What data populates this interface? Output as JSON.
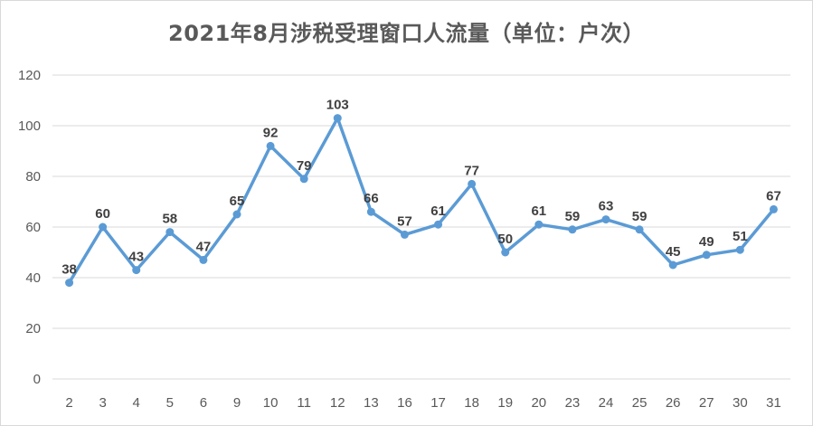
{
  "chart_data": {
    "type": "line",
    "title": "2021年8月涉税受理窗口人流量（单位：户次）",
    "xlabel": "",
    "ylabel": "",
    "categories": [
      "2",
      "3",
      "4",
      "5",
      "6",
      "9",
      "10",
      "11",
      "12",
      "13",
      "16",
      "17",
      "18",
      "19",
      "20",
      "23",
      "24",
      "25",
      "26",
      "27",
      "30",
      "31"
    ],
    "series": [
      {
        "values": [
          38,
          60,
          43,
          58,
          47,
          65,
          92,
          79,
          103,
          66,
          57,
          61,
          77,
          50,
          61,
          59,
          63,
          59,
          45,
          49,
          51,
          67
        ],
        "color": "#5b9bd5"
      }
    ],
    "ylim": [
      0,
      120
    ],
    "yticks": [
      0,
      20,
      40,
      60,
      80,
      100,
      120
    ],
    "grid": true,
    "legend": "none",
    "data_labels": true,
    "gridline_color": "#d9d9d9",
    "label_color": "#404040"
  }
}
